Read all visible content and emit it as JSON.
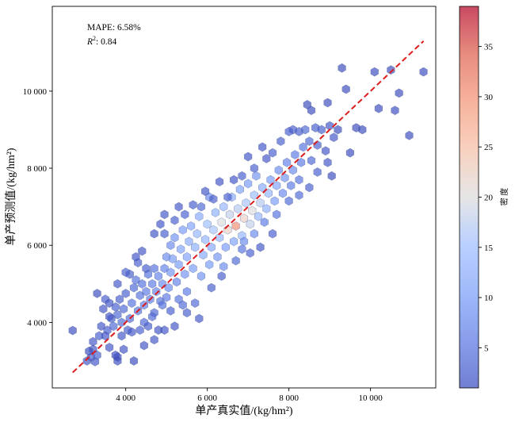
{
  "chart_data": {
    "type": "hexbin",
    "xlabel": "单产真实值/(kg/hm²)",
    "ylabel": "单产预测值/(kg/hm²)",
    "xlim": [
      2200,
      11600
    ],
    "ylim": [
      2300,
      12200
    ],
    "x_ticks": [
      4000,
      6000,
      8000,
      10000
    ],
    "y_ticks": [
      4000,
      6000,
      8000,
      10000
    ],
    "x_tick_labels": [
      "4 000",
      "6 000",
      "8 000",
      "10 000"
    ],
    "y_tick_labels": [
      "4 000",
      "6 000",
      "8 000",
      "10 000"
    ],
    "annotations": {
      "mape": "MAPE: 6.58%",
      "r2_symbol": "R",
      "r2_sup": "2",
      "r2_value": ": 0.84"
    },
    "reference_line": {
      "style": "dashed",
      "color": "#dd1c1c",
      "from": [
        2700,
        2700
      ],
      "to": [
        11300,
        11300
      ]
    },
    "colorbar": {
      "label": "密 度",
      "min": 1,
      "max": 39,
      "ticks": [
        5,
        10,
        15,
        20,
        25,
        30,
        35
      ],
      "colormap": "coolwarm"
    },
    "grid": false,
    "cells": [
      [
        2700,
        3790,
        1
      ],
      [
        3050,
        3000,
        2
      ],
      [
        3150,
        3100,
        3
      ],
      [
        3200,
        3300,
        2
      ],
      [
        3100,
        3250,
        1
      ],
      [
        3250,
        2980,
        2
      ],
      [
        3300,
        3150,
        3
      ],
      [
        3200,
        3500,
        2
      ],
      [
        3350,
        3650,
        3
      ],
      [
        3400,
        3900,
        2
      ],
      [
        3300,
        4750,
        1
      ],
      [
        3450,
        4350,
        2
      ],
      [
        3500,
        4600,
        3
      ],
      [
        3600,
        4500,
        2
      ],
      [
        3550,
        3800,
        3
      ],
      [
        3650,
        4100,
        3
      ],
      [
        3700,
        3900,
        4
      ],
      [
        3750,
        4400,
        3
      ],
      [
        3800,
        4200,
        4
      ],
      [
        3850,
        4600,
        3
      ],
      [
        3900,
        4000,
        4
      ],
      [
        3950,
        4350,
        4
      ],
      [
        4000,
        4750,
        3
      ],
      [
        4050,
        3800,
        3
      ],
      [
        4100,
        4100,
        4
      ],
      [
        4150,
        4500,
        5
      ],
      [
        4100,
        5250,
        3
      ],
      [
        4200,
        4900,
        4
      ],
      [
        4250,
        5100,
        5
      ],
      [
        4300,
        4300,
        5
      ],
      [
        4350,
        4700,
        5
      ],
      [
        4400,
        5000,
        5
      ],
      [
        4300,
        5550,
        3
      ],
      [
        4450,
        4450,
        6
      ],
      [
        4500,
        4800,
        6
      ],
      [
        4550,
        5250,
        5
      ],
      [
        4450,
        4000,
        4
      ],
      [
        4600,
        4600,
        6
      ],
      [
        4650,
        5000,
        6
      ],
      [
        4550,
        3900,
        3
      ],
      [
        4700,
        5400,
        5
      ],
      [
        4750,
        4800,
        7
      ],
      [
        4800,
        5200,
        7
      ],
      [
        4850,
        4550,
        5
      ],
      [
        4700,
        4250,
        4
      ],
      [
        4900,
        5000,
        8
      ],
      [
        4950,
        5400,
        7
      ],
      [
        4900,
        4450,
        5
      ],
      [
        5000,
        5700,
        8
      ],
      [
        5050,
        4900,
        8
      ],
      [
        5100,
        5300,
        9
      ],
      [
        5150,
        5650,
        10
      ],
      [
        5100,
        6000,
        8
      ],
      [
        5200,
        6200,
        9
      ],
      [
        5250,
        5050,
        7
      ],
      [
        5300,
        5500,
        10
      ],
      [
        5350,
        5900,
        11
      ],
      [
        5400,
        6400,
        10
      ],
      [
        5300,
        4600,
        5
      ],
      [
        5450,
        5250,
        9
      ],
      [
        5500,
        5700,
        11
      ],
      [
        5550,
        6100,
        12
      ],
      [
        5600,
        6500,
        11
      ],
      [
        5500,
        4800,
        6
      ],
      [
        5650,
        5400,
        10
      ],
      [
        5700,
        5950,
        13
      ],
      [
        5750,
        6300,
        14
      ],
      [
        5800,
        6750,
        12
      ],
      [
        5700,
        4500,
        4
      ],
      [
        5850,
        5200,
        9
      ],
      [
        5900,
        5750,
        12
      ],
      [
        5950,
        6150,
        14
      ],
      [
        6000,
        6550,
        15
      ],
      [
        6050,
        5500,
        10
      ],
      [
        6100,
        5950,
        12
      ],
      [
        6150,
        6400,
        16
      ],
      [
        6200,
        6850,
        13
      ],
      [
        6050,
        7250,
        8
      ],
      [
        6250,
        5700,
        9
      ],
      [
        6300,
        6200,
        14
      ],
      [
        6350,
        6600,
        20
      ],
      [
        6400,
        7000,
        14
      ],
      [
        6400,
        5450,
        8
      ],
      [
        6450,
        5950,
        10
      ],
      [
        6500,
        6400,
        22
      ],
      [
        6550,
        6800,
        18
      ],
      [
        6600,
        7250,
        12
      ],
      [
        6650,
        6100,
        11
      ],
      [
        6700,
        6500,
        30
      ],
      [
        6750,
        6950,
        17
      ],
      [
        6800,
        7450,
        11
      ],
      [
        6850,
        6250,
        14
      ],
      [
        6900,
        6700,
        22
      ],
      [
        6950,
        7100,
        16
      ],
      [
        7000,
        7600,
        10
      ],
      [
        7050,
        6550,
        18
      ],
      [
        7100,
        6900,
        20
      ],
      [
        7150,
        7300,
        15
      ],
      [
        7200,
        7800,
        9
      ],
      [
        7250,
        6750,
        14
      ],
      [
        7300,
        7100,
        17
      ],
      [
        7350,
        7500,
        12
      ],
      [
        7450,
        6950,
        13
      ],
      [
        7500,
        7350,
        14
      ],
      [
        7550,
        7700,
        10
      ],
      [
        7650,
        7150,
        10
      ],
      [
        7700,
        7550,
        11
      ],
      [
        7750,
        7950,
        8
      ],
      [
        7850,
        7350,
        8
      ],
      [
        7900,
        7750,
        9
      ],
      [
        7950,
        8150,
        7
      ],
      [
        8050,
        7550,
        6
      ],
      [
        8100,
        7950,
        8
      ],
      [
        8150,
        8350,
        6
      ],
      [
        8250,
        7700,
        5
      ],
      [
        8300,
        8150,
        6
      ],
      [
        8350,
        8550,
        5
      ],
      [
        8100,
        9000,
        3
      ],
      [
        8400,
        9000,
        4
      ],
      [
        8500,
        8700,
        4
      ],
      [
        8550,
        8200,
        4
      ],
      [
        8650,
        9050,
        3
      ],
      [
        8700,
        8600,
        3
      ],
      [
        8800,
        9000,
        3
      ],
      [
        8900,
        8450,
        2
      ],
      [
        9000,
        9100,
        2
      ],
      [
        9100,
        8800,
        2
      ],
      [
        9050,
        7800,
        1
      ],
      [
        9200,
        9000,
        1
      ],
      [
        9300,
        10600,
        1
      ],
      [
        9400,
        10050,
        1
      ],
      [
        9500,
        8400,
        1
      ],
      [
        9650,
        9050,
        1
      ],
      [
        9800,
        9000,
        1
      ],
      [
        10100,
        10500,
        1
      ],
      [
        10200,
        9550,
        1
      ],
      [
        10500,
        10550,
        1
      ],
      [
        10600,
        9500,
        1
      ],
      [
        10700,
        9950,
        1
      ],
      [
        10950,
        8850,
        1
      ],
      [
        11300,
        10500,
        1
      ],
      [
        8450,
        9650,
        1
      ],
      [
        8550,
        9500,
        1
      ],
      [
        8950,
        9700,
        1
      ],
      [
        7350,
        8550,
        2
      ],
      [
        7450,
        8250,
        2
      ],
      [
        6850,
        7800,
        3
      ],
      [
        6650,
        7700,
        2
      ],
      [
        6500,
        7250,
        3
      ],
      [
        6300,
        7650,
        2
      ],
      [
        5850,
        7000,
        4
      ],
      [
        5450,
        6800,
        3
      ],
      [
        5200,
        6650,
        3
      ],
      [
        4950,
        6300,
        3
      ],
      [
        4700,
        6300,
        2
      ],
      [
        4850,
        6550,
        2
      ],
      [
        4950,
        6800,
        2
      ],
      [
        4400,
        5850,
        2
      ],
      [
        4000,
        5300,
        3
      ],
      [
        3800,
        5000,
        2
      ],
      [
        3600,
        4150,
        2
      ],
      [
        3600,
        3350,
        2
      ],
      [
        3800,
        3100,
        1
      ],
      [
        3800,
        3000,
        1
      ],
      [
        3750,
        3150,
        1
      ],
      [
        4200,
        3000,
        1
      ],
      [
        4450,
        3400,
        2
      ],
      [
        4700,
        3550,
        2
      ],
      [
        4800,
        3800,
        2
      ],
      [
        4950,
        3800,
        2
      ],
      [
        5100,
        4300,
        3
      ],
      [
        5200,
        3900,
        2
      ],
      [
        5500,
        4250,
        3
      ],
      [
        5800,
        4100,
        2
      ],
      [
        6100,
        4900,
        3
      ],
      [
        6350,
        5200,
        3
      ],
      [
        6700,
        5600,
        4
      ],
      [
        6850,
        5900,
        5
      ],
      [
        7150,
        6300,
        8
      ],
      [
        7400,
        6600,
        6
      ],
      [
        7700,
        6800,
        5
      ],
      [
        8000,
        7150,
        4
      ],
      [
        8250,
        7300,
        4
      ],
      [
        8500,
        7500,
        3
      ],
      [
        8700,
        7900,
        3
      ],
      [
        8950,
        8150,
        2
      ],
      [
        7600,
        8400,
        3
      ],
      [
        7800,
        8700,
        3
      ],
      [
        8000,
        8950,
        3
      ],
      [
        8250,
        8950,
        3
      ],
      [
        5650,
        7050,
        3
      ],
      [
        5300,
        7000,
        2
      ],
      [
        5950,
        7400,
        2
      ],
      [
        6150,
        7200,
        3
      ],
      [
        7000,
        8300,
        2
      ],
      [
        7150,
        8000,
        3
      ],
      [
        6900,
        6100,
        8
      ],
      [
        7300,
        5950,
        2
      ],
      [
        7600,
        6300,
        3
      ],
      [
        7050,
        5800,
        3
      ],
      [
        4500,
        5400,
        3
      ],
      [
        4250,
        5700,
        2
      ],
      [
        5000,
        4650,
        6
      ],
      [
        5400,
        4450,
        4
      ],
      [
        3900,
        3650,
        2
      ],
      [
        4150,
        3750,
        2
      ],
      [
        3500,
        3650,
        2
      ],
      [
        3950,
        3300,
        2
      ],
      [
        4350,
        3800,
        3
      ],
      [
        4650,
        4150,
        4
      ]
    ]
  }
}
